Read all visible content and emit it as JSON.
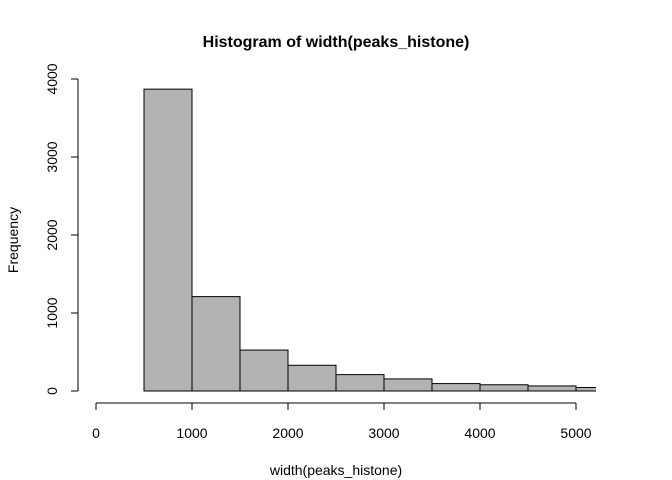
{
  "chart_data": {
    "type": "bar",
    "title": "Histogram of width(peaks_histone)",
    "xlabel": "width(peaks_histone)",
    "ylabel": "Frequency",
    "xlim": [
      0,
      5200
    ],
    "ylim": [
      0,
      4000
    ],
    "x_ticks": [
      0,
      1000,
      2000,
      3000,
      4000,
      5000
    ],
    "y_ticks": [
      0,
      1000,
      2000,
      3000,
      4000
    ],
    "bin_edges": [
      500,
      1000,
      1500,
      2000,
      2500,
      3000,
      3500,
      4000,
      4500,
      5000,
      5500
    ],
    "values": [
      3870,
      1210,
      525,
      330,
      210,
      155,
      95,
      80,
      65,
      45
    ],
    "bar_color": "#b3b3b3",
    "grid": false,
    "legend": "none"
  }
}
